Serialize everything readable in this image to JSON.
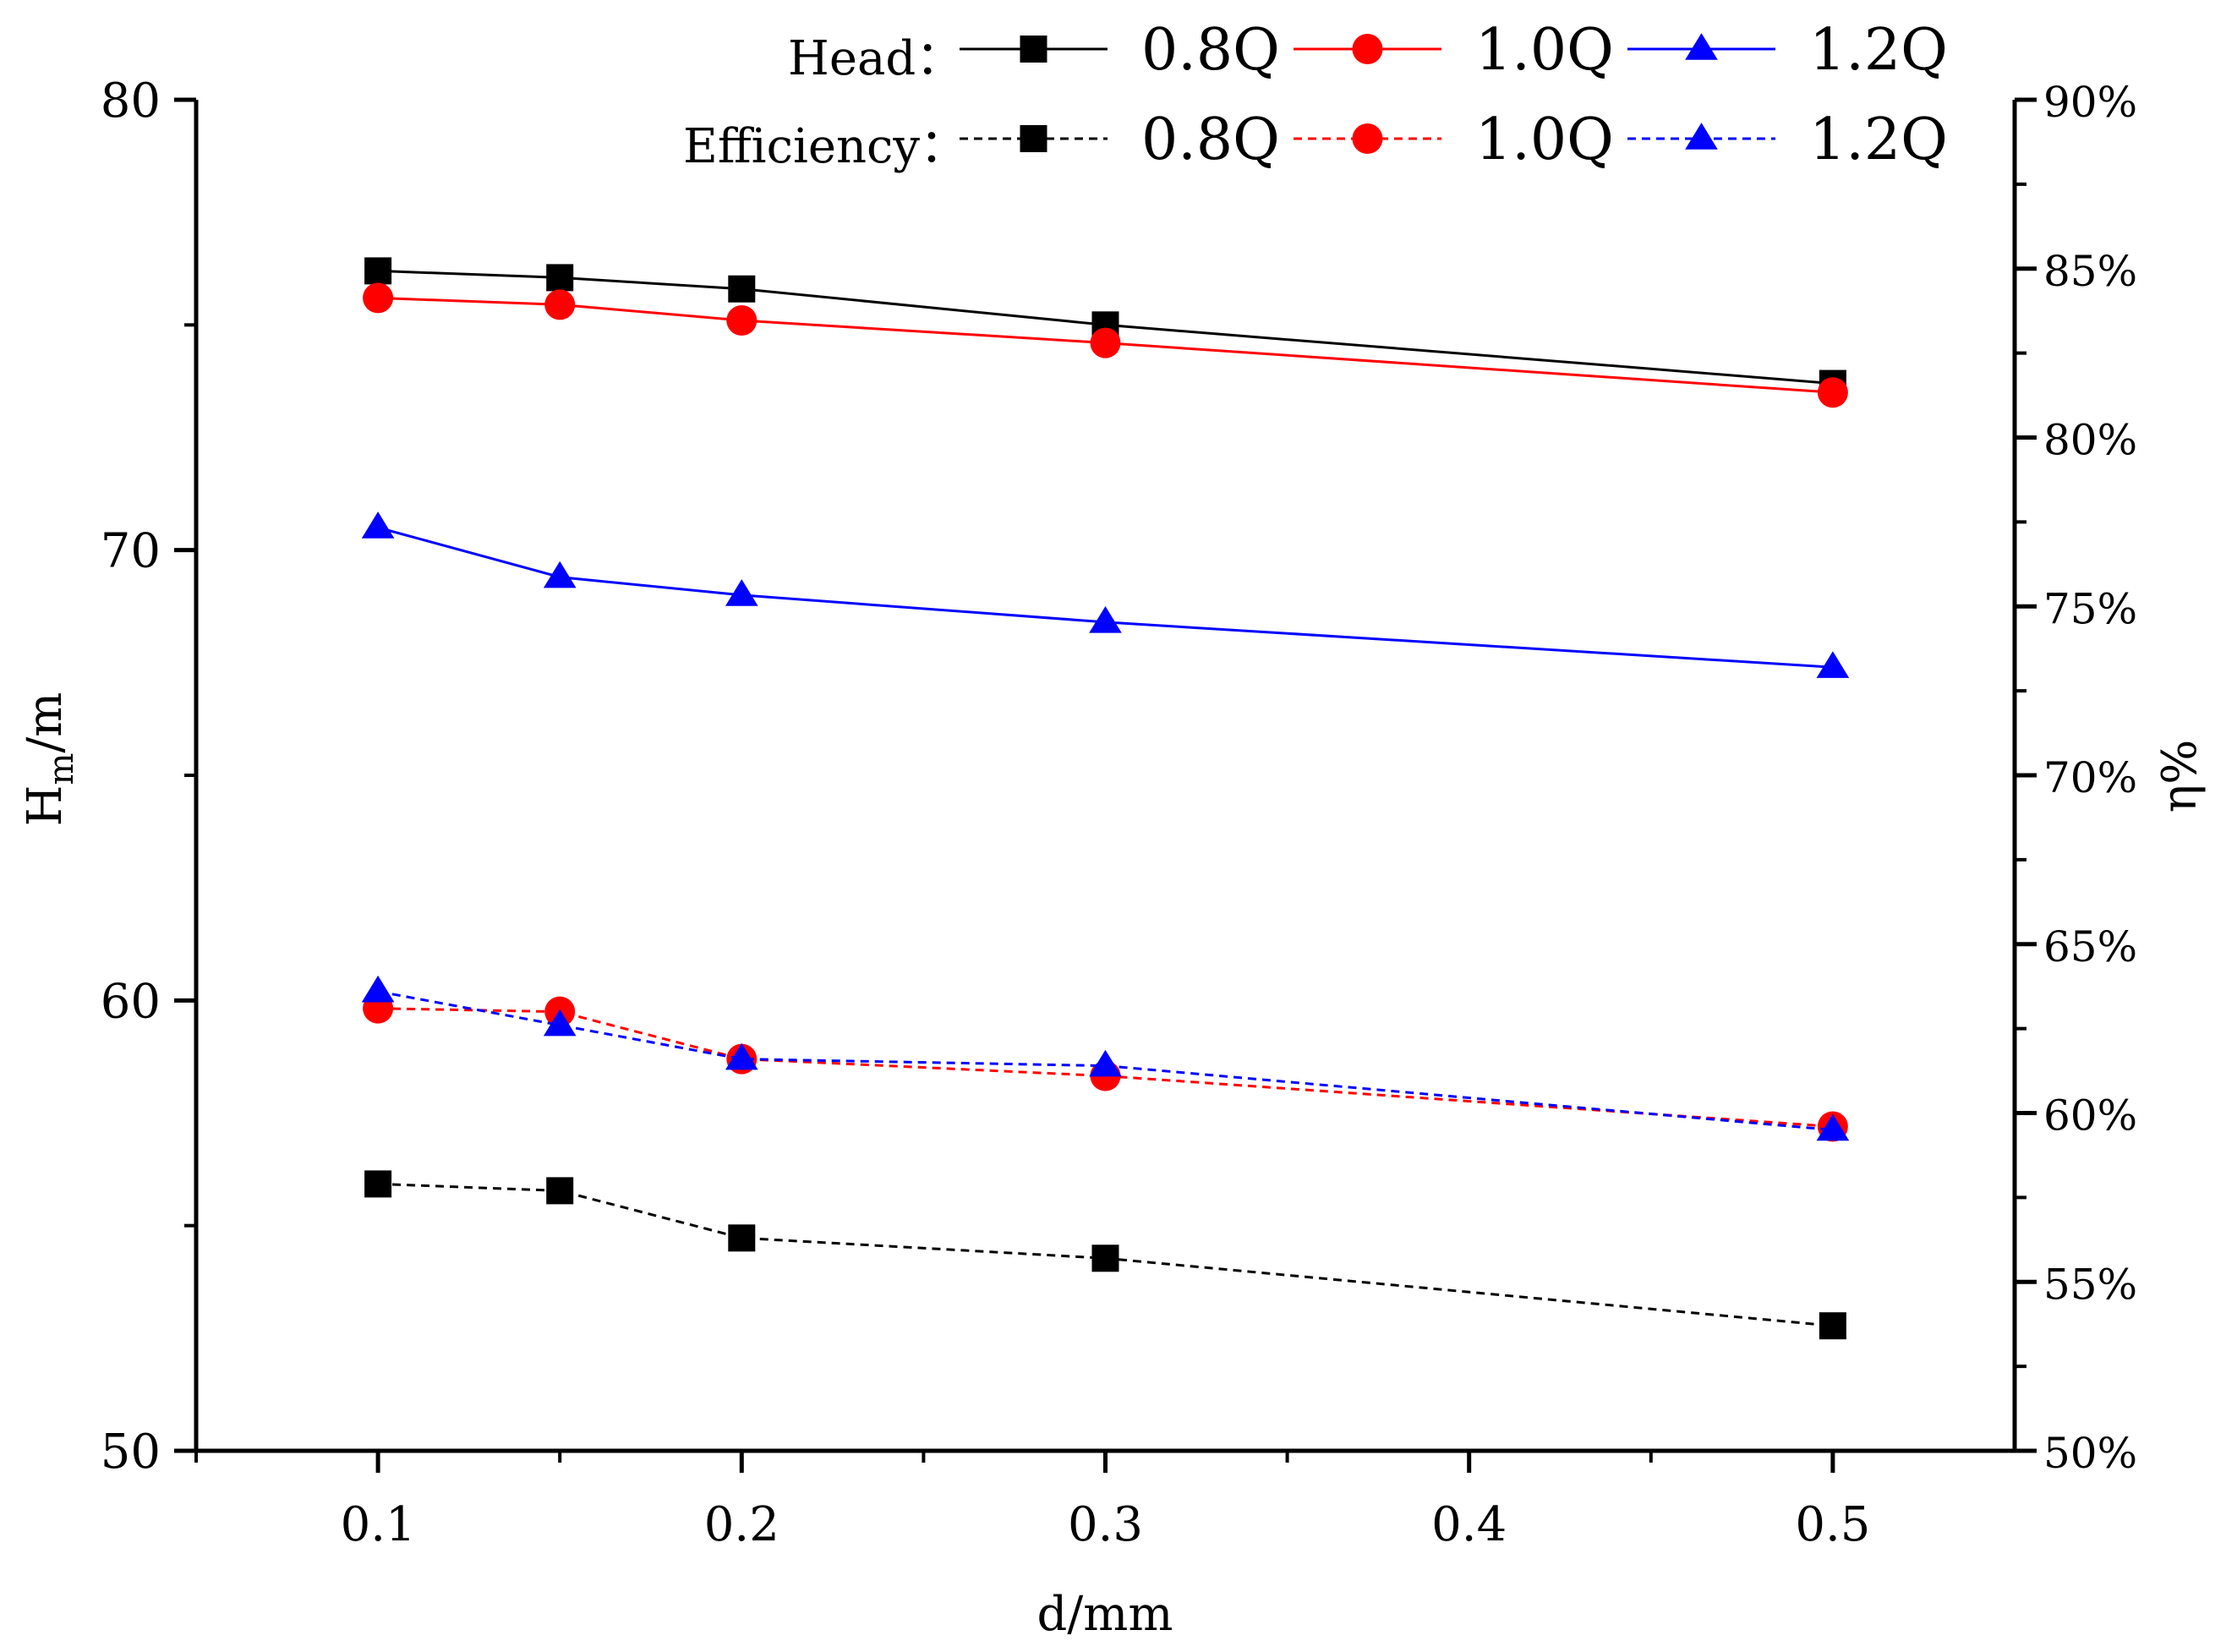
{
  "chart_data": {
    "type": "line",
    "xlabel": "d/mm",
    "ylabel_main": "H",
    "ylabel_sub": "m",
    "ylabel_unit": "/m",
    "y2label": "η%",
    "x_ticks": [
      0.1,
      0.2,
      0.3,
      0.4,
      0.5
    ],
    "x_tick_labels": [
      "0.1",
      "0.2",
      "0.3",
      "0.4",
      "0.5"
    ],
    "xlim": [
      0.05,
      0.55
    ],
    "ylim": [
      50,
      80
    ],
    "y_ticks": [
      50,
      60,
      70,
      80
    ],
    "y_tick_labels": [
      "50",
      "60",
      "70",
      "80"
    ],
    "y2lim": [
      50,
      90
    ],
    "y2_ticks": [
      50,
      55,
      60,
      65,
      70,
      75,
      80,
      85,
      90
    ],
    "y2_tick_labels": [
      "50%",
      "55%",
      "60%",
      "65%",
      "70%",
      "75%",
      "80%",
      "85%",
      "90%"
    ],
    "grid": false,
    "legend_position": "top",
    "legend": {
      "head_label": "Head：",
      "efficiency_label": "Efficiency：",
      "entries": [
        "0.8Q",
        "1.0Q",
        "1.2Q"
      ]
    },
    "x": [
      0.1,
      0.15,
      0.2,
      0.3,
      0.5
    ],
    "series": [
      {
        "name": "0.8Q",
        "group": "Head",
        "axis": "left",
        "color": "#000000",
        "marker": "square",
        "dash": false,
        "values": [
          76.2,
          76.05,
          75.8,
          75.0,
          73.7
        ]
      },
      {
        "name": "1.0Q",
        "group": "Head",
        "axis": "left",
        "color": "#ff0000",
        "marker": "circle",
        "dash": false,
        "values": [
          75.6,
          75.45,
          75.1,
          74.6,
          73.5
        ]
      },
      {
        "name": "1.2Q",
        "group": "Head",
        "axis": "left",
        "color": "#0000ff",
        "marker": "triangle",
        "dash": false,
        "values": [
          70.5,
          69.4,
          69.0,
          68.4,
          67.4
        ]
      },
      {
        "name": "0.8Q",
        "group": "Efficiency",
        "axis": "right",
        "color": "#000000",
        "marker": "square",
        "dash": true,
        "values": [
          57.9,
          57.7,
          56.3,
          55.7,
          53.7
        ]
      },
      {
        "name": "1.0Q",
        "group": "Efficiency",
        "axis": "right",
        "color": "#ff0000",
        "marker": "circle",
        "dash": true,
        "values": [
          63.1,
          63.0,
          61.6,
          61.1,
          59.6
        ]
      },
      {
        "name": "1.2Q",
        "group": "Efficiency",
        "axis": "right",
        "color": "#0000ff",
        "marker": "triangle",
        "dash": true,
        "values": [
          63.6,
          62.6,
          61.6,
          61.4,
          59.5
        ]
      }
    ]
  }
}
